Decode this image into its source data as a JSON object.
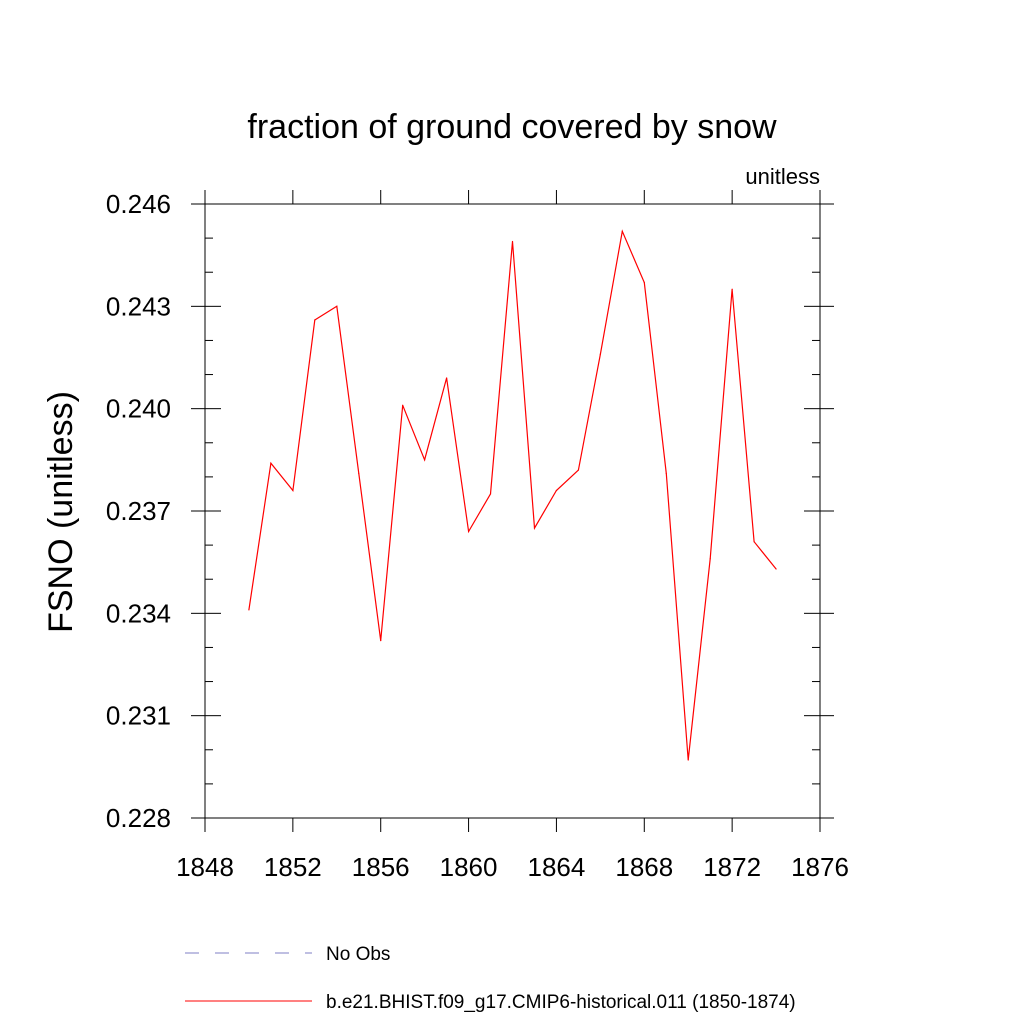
{
  "chart_data": {
    "type": "line",
    "title": "fraction of ground covered by snow",
    "units_label": "unitless",
    "xlabel": "",
    "ylabel": "FSNO  (unitless)",
    "xlim": [
      1848,
      1876
    ],
    "ylim": [
      0.228,
      0.246
    ],
    "x_ticks": [
      1848,
      1852,
      1856,
      1860,
      1864,
      1868,
      1872,
      1876
    ],
    "x_tick_labels": [
      "1848",
      "1852",
      "1856",
      "1860",
      "1864",
      "1868",
      "1872",
      "1876"
    ],
    "y_ticks": [
      0.228,
      0.231,
      0.234,
      0.237,
      0.24,
      0.243,
      0.246
    ],
    "y_tick_labels": [
      "0.228",
      "0.231",
      "0.234",
      "0.237",
      "0.240",
      "0.243",
      "0.246"
    ],
    "grid": false,
    "legend_position": "bottom",
    "series": [
      {
        "name": "b.e21.BHIST.f09_g17.CMIP6-historical.011 (1850-1874)",
        "color": "#ff0000",
        "style": "solid",
        "x": [
          1850,
          1851,
          1852,
          1853,
          1854,
          1855,
          1856,
          1857,
          1858,
          1859,
          1860,
          1861,
          1862,
          1863,
          1864,
          1865,
          1866,
          1867,
          1868,
          1869,
          1870,
          1871,
          1872,
          1873,
          1874
        ],
        "y": [
          0.2341,
          0.2384,
          0.2376,
          0.2426,
          0.243,
          0.2381,
          0.2332,
          0.2401,
          0.2385,
          0.2409,
          0.2364,
          0.2375,
          0.2449,
          0.2365,
          0.2376,
          0.2382,
          0.2416,
          0.2452,
          0.2437,
          0.2381,
          0.2297,
          0.2356,
          0.2435,
          0.2361,
          0.2353
        ]
      }
    ],
    "legend": [
      {
        "label": "No Obs",
        "color": "#7f7fc6",
        "style": "dashed"
      },
      {
        "label": "b.e21.BHIST.f09_g17.CMIP6-historical.011 (1850-1874)",
        "color": "#ff0000",
        "style": "solid"
      }
    ]
  }
}
